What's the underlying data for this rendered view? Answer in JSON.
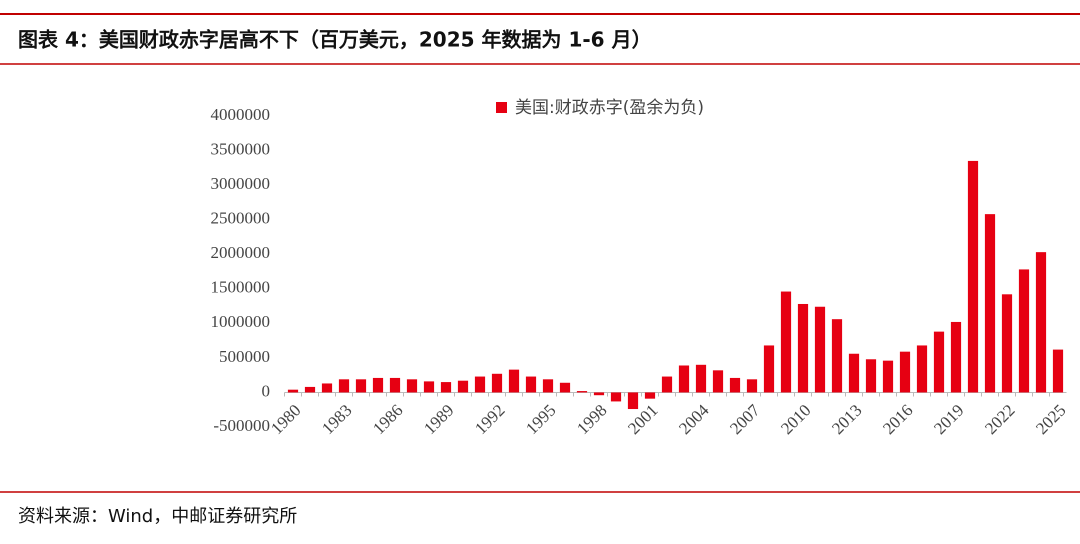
{
  "header": {
    "title": "图表 4：美国财政赤字居高不下（百万美元，2025 年数据为 1-6 月）"
  },
  "chart_data": {
    "type": "bar",
    "legend_label": "美国:财政赤字(盈余为负)",
    "color": "#e60012",
    "categories": [
      "1980",
      null,
      null,
      "1983",
      null,
      null,
      "1986",
      null,
      null,
      "1989",
      null,
      null,
      "1992",
      null,
      null,
      "1995",
      null,
      null,
      "1998",
      null,
      null,
      "2001",
      null,
      null,
      "2004",
      null,
      null,
      "2007",
      null,
      null,
      "2010",
      null,
      null,
      "2013",
      null,
      null,
      "2016",
      null,
      null,
      "2019",
      null,
      null,
      "2022",
      null,
      null,
      "2025"
    ],
    "values": [
      40000,
      80000,
      130000,
      190000,
      190000,
      210000,
      210000,
      190000,
      160000,
      150000,
      170000,
      230000,
      270000,
      330000,
      230000,
      190000,
      140000,
      20000,
      -40000,
      -130000,
      -240000,
      -90000,
      230000,
      390000,
      400000,
      320000,
      210000,
      190000,
      680000,
      1460000,
      1280000,
      1240000,
      1060000,
      560000,
      480000,
      460000,
      590000,
      680000,
      880000,
      1020000,
      3350000,
      2580000,
      1420000,
      1780000,
      2030000,
      620000
    ],
    "ylim": [
      -500000,
      4000000
    ],
    "yticks": [
      -500000,
      0,
      500000,
      1000000,
      1500000,
      2000000,
      2500000,
      3000000,
      3500000,
      4000000
    ]
  },
  "footer": {
    "source": "资料来源：Wind，中邮证券研究所"
  }
}
